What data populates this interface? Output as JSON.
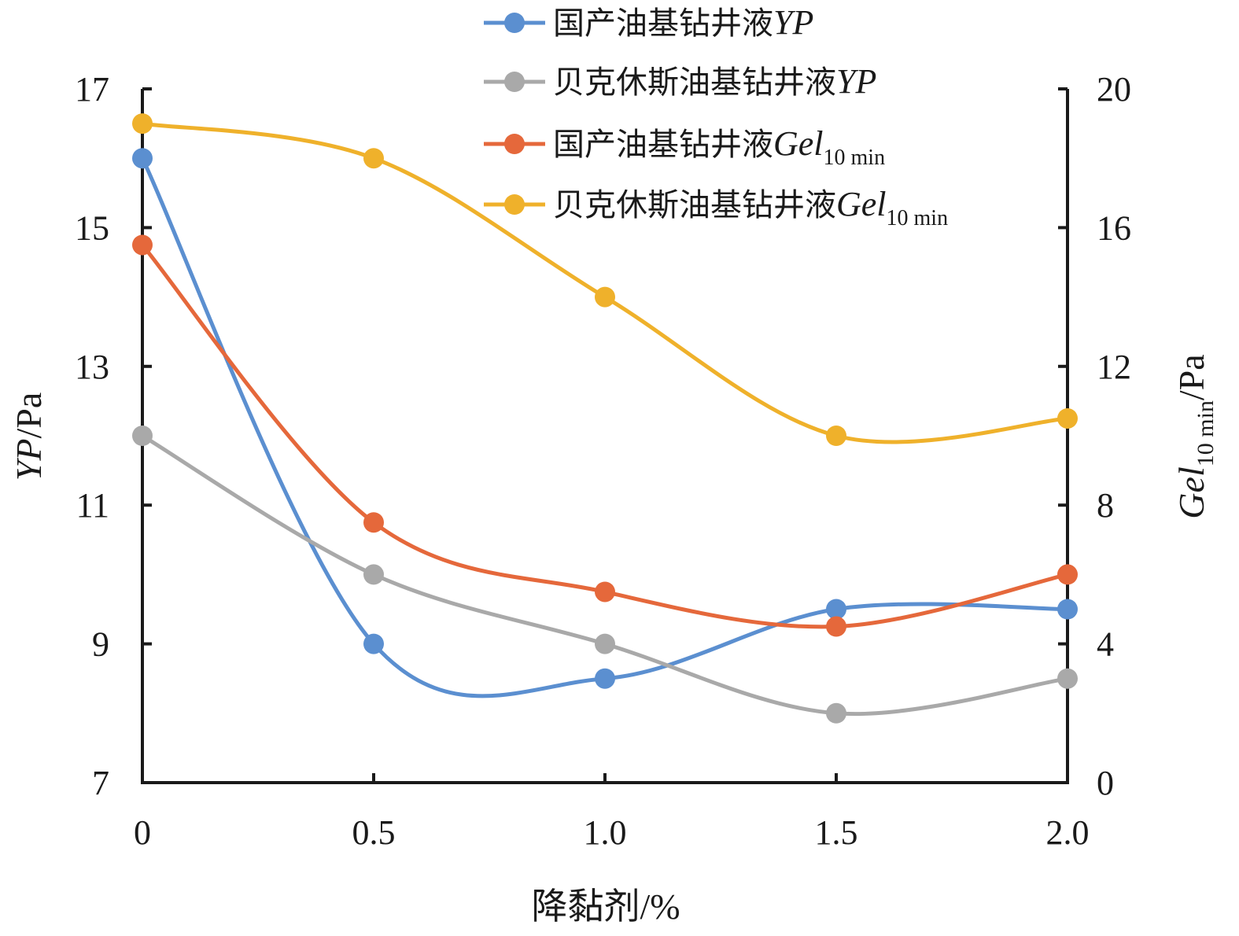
{
  "chart_data": {
    "type": "line",
    "x": [
      0,
      0.5,
      1.0,
      1.5,
      2.0
    ],
    "x_tick_labels": [
      "0",
      "0.5",
      "1.0",
      "1.5",
      "2.0"
    ],
    "xlabel": "降黏剂/%",
    "xlim": [
      0,
      2.0
    ],
    "left_axis": {
      "label_main": "YP",
      "label_unit": "/Pa",
      "ylim": [
        7,
        17
      ],
      "ticks": [
        7,
        9,
        11,
        13,
        15,
        17
      ],
      "tick_labels": [
        "7",
        "9",
        "11",
        "13",
        "15",
        "17"
      ]
    },
    "right_axis": {
      "label_main": "Gel",
      "label_sub": "10 min",
      "label_unit": "/Pa",
      "ylim": [
        0,
        20
      ],
      "ticks": [
        0,
        4,
        8,
        12,
        16,
        20
      ],
      "tick_labels": [
        "0",
        "4",
        "8",
        "12",
        "16",
        "20"
      ]
    },
    "series": [
      {
        "name_prefix": "国产油基钻井液",
        "name_param": "YP",
        "name_sub": "",
        "axis": "left",
        "color": "#5b8fd0",
        "values": [
          16.0,
          9.0,
          8.5,
          9.5,
          9.5
        ]
      },
      {
        "name_prefix": "贝克休斯油基钻井液",
        "name_param": "YP",
        "name_sub": "",
        "axis": "left",
        "color": "#a9a9a9",
        "values": [
          12.0,
          10.0,
          9.0,
          8.0,
          8.5
        ]
      },
      {
        "name_prefix": "国产油基钻井液",
        "name_param": "Gel",
        "name_sub": "10 min",
        "axis": "right",
        "color": "#e5683b",
        "values": [
          15.5,
          7.5,
          5.5,
          4.5,
          6.0
        ]
      },
      {
        "name_prefix": "贝克休斯油基钻井液",
        "name_param": "Gel",
        "name_sub": "10 min",
        "axis": "right",
        "color": "#efb12b",
        "values": [
          19.0,
          18.0,
          14.0,
          10.0,
          10.5
        ]
      }
    ],
    "grid": false,
    "legend_position": "top-center"
  }
}
